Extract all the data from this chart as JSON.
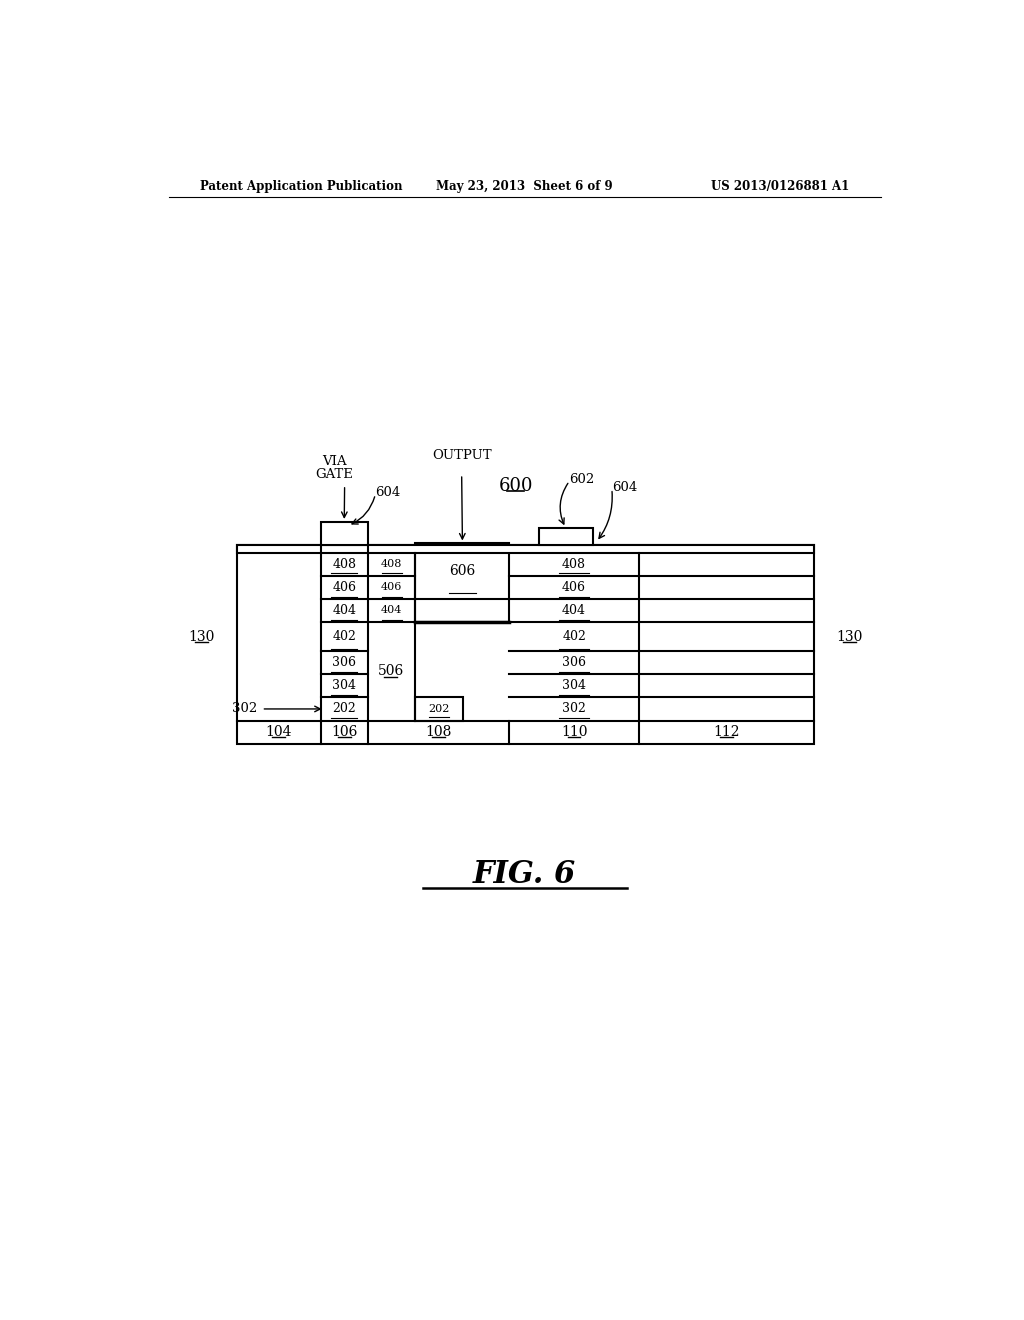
{
  "header_left": "Patent Application Publication",
  "header_mid": "May 23, 2013  Sheet 6 of 9",
  "header_right": "US 2013/0126881 A1",
  "bg_color": "#ffffff",
  "lw": 1.5
}
